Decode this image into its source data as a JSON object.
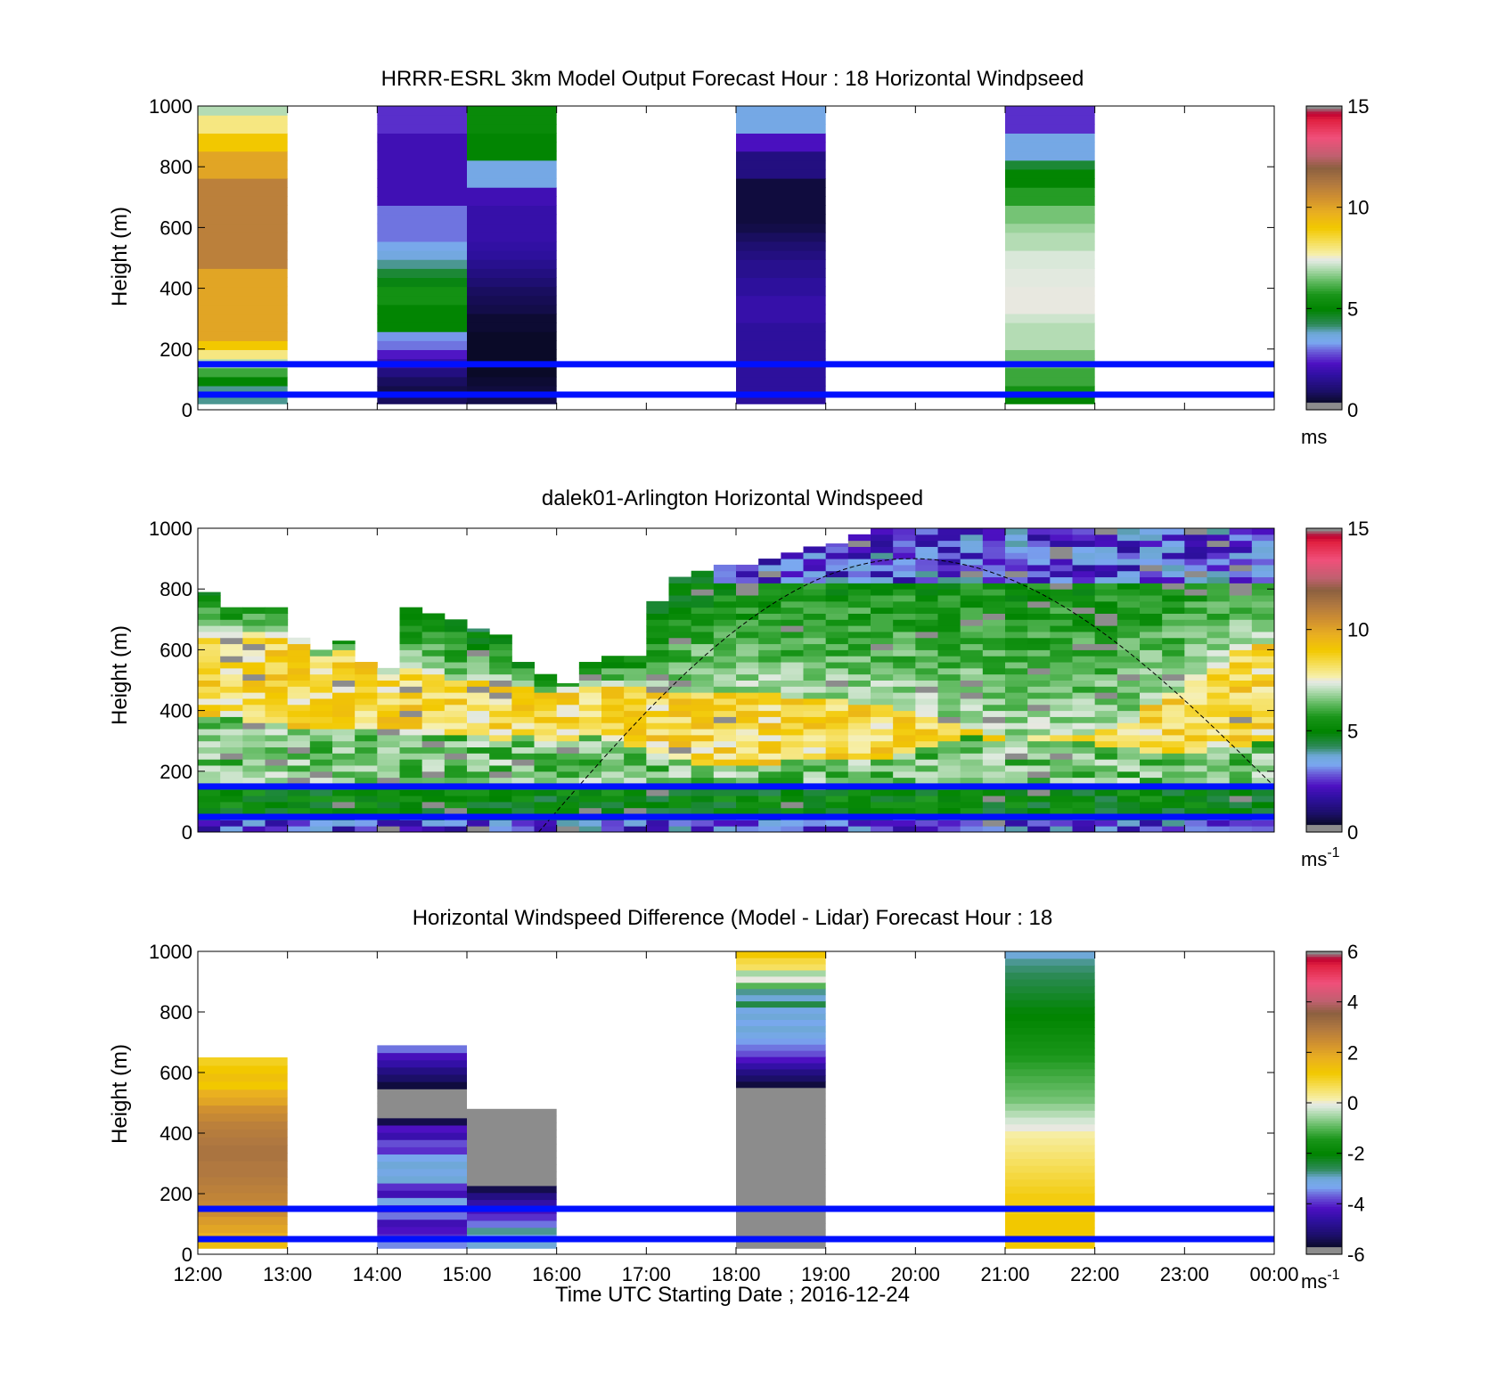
{
  "xaxis": {
    "label": "Time UTC  Starting Date ; 2016-12-24",
    "ticks": [
      "12:00",
      "13:00",
      "14:00",
      "15:00",
      "16:00",
      "17:00",
      "18:00",
      "19:00",
      "20:00",
      "21:00",
      "22:00",
      "23:00",
      "00:00"
    ],
    "range_hours": [
      12,
      24
    ]
  },
  "chart_data": [
    {
      "type": "heatmap",
      "title": "HRRR-ESRL 3km Model Output   Forecast Hour : 18 Horizontal Windpseed",
      "ylabel": "Height (m)",
      "ylim": [
        0,
        1000
      ],
      "yticks": [
        "0",
        "200",
        "400",
        "600",
        "800",
        "1000"
      ],
      "colorbar": {
        "range": [
          0,
          15
        ],
        "ticks": [
          "0",
          "5",
          "10",
          "15"
        ],
        "unit": "ms",
        "unit_sup": ""
      },
      "reference_lines_m": [
        150,
        50
      ],
      "columns": [
        {
          "start_hour": 12,
          "end_hour": 13,
          "bottom": 20,
          "top": 1000,
          "values": [
            4,
            4,
            5,
            6,
            7,
            8,
            9,
            10,
            10,
            10,
            10,
            10,
            10,
            10,
            10,
            11,
            11,
            11,
            11,
            11,
            11,
            11,
            11,
            11,
            11,
            10,
            10,
            10,
            9,
            9,
            8,
            8,
            7
          ]
        },
        {
          "start_hour": 14,
          "end_hour": 15,
          "bottom": 20,
          "top": 1000,
          "values": [
            0.8,
            0.6,
            0.8,
            1.2,
            1.8,
            2.3,
            3,
            3.2,
            5,
            5,
            5,
            5.5,
            5.5,
            4.8,
            4.5,
            4,
            3.6,
            3.4,
            3,
            3,
            3,
            3,
            2,
            2,
            2,
            2,
            2,
            2,
            2,
            2,
            2.5,
            2.5,
            2.5
          ]
        },
        {
          "start_hour": 15,
          "end_hour": 16,
          "bottom": 20,
          "top": 1000,
          "values": [
            0.6,
            0.5,
            0.4,
            0.3,
            0.3,
            0.3,
            0.3,
            0.3,
            0.4,
            0.4,
            0.6,
            0.7,
            0.8,
            1,
            1.2,
            1.4,
            1.6,
            1.7,
            1.8,
            1.8,
            1.8,
            1.8,
            2,
            2,
            3.5,
            3.5,
            3.5,
            5,
            5,
            5,
            5.2,
            5.2,
            5.2
          ]
        },
        {
          "start_hour": 18,
          "end_hour": 19,
          "bottom": 20,
          "top": 1000,
          "values": [
            1.6,
            1.6,
            1.6,
            1.6,
            1.6,
            1.6,
            1.6,
            1.6,
            1.6,
            1.8,
            1.8,
            1.8,
            1.6,
            1.6,
            1.4,
            1.4,
            1.2,
            1,
            0.8,
            0.6,
            0.5,
            0.5,
            0.5,
            0.5,
            0.5,
            1.2,
            1.2,
            1.2,
            2.2,
            2.2,
            3.5,
            3.5,
            3.5
          ]
        },
        {
          "start_hour": 21,
          "end_hour": 22,
          "bottom": 20,
          "top": 1000,
          "values": [
            5,
            5.5,
            6,
            6,
            6.5,
            6.5,
            7,
            7,
            7,
            7.2,
            7.5,
            7.5,
            7.5,
            7.4,
            7.4,
            7.3,
            7.3,
            7,
            7,
            6.8,
            6.5,
            6.5,
            5.8,
            5.8,
            5,
            5,
            4.5,
            3.5,
            3.5,
            3.5,
            2.5,
            2.5,
            2.5
          ]
        }
      ]
    },
    {
      "type": "heatmap",
      "title": "dalek01-Arlington  Horizontal Windspeed",
      "ylabel": "Height (m)",
      "ylim": [
        0,
        1000
      ],
      "yticks": [
        "0",
        "200",
        "400",
        "600",
        "800",
        "1000"
      ],
      "colorbar": {
        "range": [
          0,
          15
        ],
        "ticks": [
          "0",
          "5",
          "10",
          "15"
        ],
        "unit": "ms",
        "unit_sup": "-1"
      },
      "reference_lines_m": [
        150,
        50
      ],
      "time_step_hours": 0.25,
      "column_tops_m": [
        790,
        740,
        740,
        740,
        640,
        600,
        630,
        560,
        540,
        740,
        720,
        700,
        670,
        650,
        560,
        520,
        490,
        560,
        580,
        580,
        760,
        840,
        860,
        880,
        880,
        900,
        920,
        940,
        950,
        980,
        1000,
        1000,
        1000,
        1000,
        1000,
        1000,
        1000,
        1000,
        1000,
        1000,
        1000,
        1000,
        1000,
        1000,
        1000,
        1000,
        1000,
        1000
      ],
      "yellow_band_m": [
        [
          380,
          640
        ],
        [
          380,
          640
        ],
        [
          360,
          660
        ],
        [
          360,
          640
        ],
        [
          340,
          620
        ],
        [
          340,
          580
        ],
        [
          340,
          590
        ],
        [
          340,
          550
        ],
        [
          320,
          520
        ],
        [
          320,
          530
        ],
        [
          320,
          520
        ],
        [
          320,
          500
        ],
        [
          320,
          490
        ],
        [
          300,
          480
        ],
        [
          320,
          470
        ],
        [
          300,
          460
        ],
        [
          300,
          460
        ],
        [
          320,
          480
        ],
        [
          300,
          480
        ],
        [
          280,
          470
        ],
        [
          260,
          460
        ],
        [
          240,
          460
        ],
        [
          220,
          460
        ],
        [
          210,
          450
        ],
        [
          210,
          450
        ],
        [
          220,
          460
        ],
        [
          230,
          440
        ],
        [
          230,
          440
        ],
        [
          240,
          430
        ],
        [
          240,
          420
        ],
        [
          240,
          420
        ],
        [
          260,
          400
        ],
        [
          280,
          380
        ],
        [
          290,
          360
        ],
        [
          320,
          340
        ],
        [
          300,
          320
        ],
        [
          290,
          300
        ],
        [
          300,
          320
        ],
        [
          300,
          320
        ],
        [
          300,
          320
        ],
        [
          280,
          330
        ],
        [
          270,
          360
        ],
        [
          260,
          420
        ],
        [
          250,
          460
        ],
        [
          260,
          520
        ],
        [
          270,
          560
        ],
        [
          280,
          600
        ],
        [
          290,
          620
        ]
      ],
      "sun_curve": {
        "start_hour": 15.8,
        "peak_hour": 19.95,
        "end_hour": 24.0,
        "peak_m": 900,
        "end_m": 150
      }
    },
    {
      "type": "heatmap",
      "title": "Horizontal Windspeed Difference (Model - Lidar) Forecast Hour : 18",
      "ylabel": "Height (m)",
      "ylim": [
        0,
        1000
      ],
      "yticks": [
        "0",
        "200",
        "400",
        "600",
        "800",
        "1000"
      ],
      "colorbar": {
        "range": [
          -6,
          6
        ],
        "ticks": [
          "-6",
          "-4",
          "-2",
          "0",
          "2",
          "4",
          "6"
        ],
        "unit": "ms",
        "unit_sup": "-1"
      },
      "reference_lines_m": [
        150,
        50
      ],
      "columns": [
        {
          "start_hour": 12,
          "end_hour": 13,
          "bottom": 20,
          "top": 650,
          "values": [
            1.5,
            1.8,
            2,
            2.2,
            2.5,
            2.6,
            2.7,
            2.8,
            2.9,
            3,
            3,
            3.1,
            3.1,
            3,
            2.9,
            2.8,
            2.6,
            2.4,
            2,
            1.8,
            1.2,
            1.4,
            1.2,
            1
          ]
        },
        {
          "start_hour": 14,
          "end_hour": 15,
          "bottom": 20,
          "top": 690,
          "values": [
            -3.5,
            -4,
            -4.2,
            -4.4,
            -3.6,
            -4,
            -3.2,
            -4.4,
            -4,
            -3,
            -3.2,
            -3,
            -3.3,
            -4,
            -3.8,
            -4.5,
            -4.2,
            -5.5,
            -5.8,
            -6,
            -6,
            -6,
            -5.6,
            -5.3,
            -5,
            -4.6,
            -4.3,
            -3.6
          ]
        },
        {
          "start_hour": 15,
          "end_hour": 16,
          "bottom": 20,
          "top": 480,
          "values": [
            -3,
            -3.2,
            -2.8,
            -3.6,
            -4,
            -4.3,
            -4.6,
            -5,
            -5.5,
            -5.8,
            -6,
            -6,
            -6,
            -6,
            -6,
            -6,
            -6,
            -6,
            -6,
            -6
          ]
        },
        {
          "start_hour": 18,
          "end_hour": 19,
          "bottom": 20,
          "top": 1000,
          "values": [
            -6,
            -6,
            -6,
            -6,
            -6,
            -6,
            -6,
            -6,
            -6,
            -6,
            -6,
            -6,
            -6,
            -6,
            -6,
            -6,
            -6,
            -6,
            -6,
            -6,
            -6,
            -6,
            -6,
            -6,
            -6,
            -5.8,
            -5.6,
            -5.3,
            -5,
            -4.6,
            -4.2,
            -3.8,
            -3.6,
            -3.4,
            -3.2,
            -3,
            -3.3,
            -3,
            -3.2,
            -2.5,
            -3,
            -2.8,
            -1,
            0,
            -0.5,
            0.6,
            0.8,
            1.2
          ]
        },
        {
          "start_hour": 21,
          "end_hour": 22,
          "bottom": 20,
          "top": 1000,
          "values": [
            1.2,
            1.2,
            1.2,
            1.2,
            1.2,
            1.1,
            1.1,
            1.1,
            1,
            0.9,
            0.8,
            0.7,
            0.6,
            0.5,
            0.4,
            0.3,
            0.2,
            0,
            -0.2,
            -0.4,
            -0.6,
            -0.8,
            -0.9,
            -1,
            -1.1,
            -1.2,
            -1.3,
            -1.4,
            -1.5,
            -1.6,
            -1.7,
            -1.8,
            -1.9,
            -2,
            -2.1,
            -2.2,
            -2.3,
            -2.4,
            -2.5,
            -2.6,
            -2.7,
            -2.8,
            -3
          ]
        }
      ]
    }
  ]
}
